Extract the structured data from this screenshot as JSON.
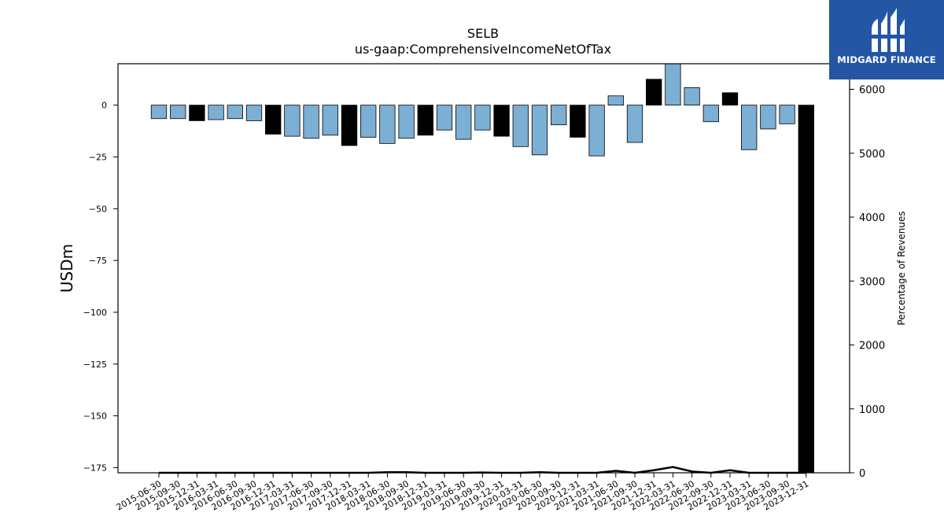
{
  "chart_data": {
    "type": "bar",
    "title": "SELB",
    "subtitle": "us-gaap:ComprehensiveIncomeNetOfTax",
    "ylabel": "USDm",
    "y2label": "Percentage of Revenues",
    "ylim": [
      -177.5,
      20
    ],
    "y2lim": [
      0,
      6400
    ],
    "yticks": [
      0,
      -25,
      -50,
      -75,
      -100,
      -125,
      -150,
      -175
    ],
    "y2ticks": [
      0,
      1000,
      2000,
      3000,
      4000,
      5000,
      6000
    ],
    "grid": false,
    "categories": [
      "2015-06-30",
      "2015-09-30",
      "2015-12-31",
      "2016-03-31",
      "2016-06-30",
      "2016-09-30",
      "2016-12-31",
      "2017-03-31",
      "2017-06-30",
      "2017-09-30",
      "2017-12-31",
      "2018-03-31",
      "2018-06-30",
      "2018-09-30",
      "2018-12-31",
      "2019-03-31",
      "2019-06-30",
      "2019-09-30",
      "2019-12-31",
      "2020-03-31",
      "2020-06-30",
      "2020-09-30",
      "2020-12-31",
      "2021-03-31",
      "2021-06-30",
      "2021-09-30",
      "2021-12-31",
      "2022-03-31",
      "2022-06-30",
      "2022-09-30",
      "2022-12-31",
      "2023-03-31",
      "2023-06-30",
      "2023-09-30",
      "2023-12-31"
    ],
    "series": [
      {
        "type": "bar",
        "values": [
          -6.5,
          -6.5,
          -7.5,
          -7.0,
          -6.5,
          -7.5,
          -14.0,
          -15.0,
          -16.0,
          -14.5,
          -19.5,
          -15.5,
          -18.5,
          -16.0,
          -14.5,
          -12.0,
          -16.5,
          -12.0,
          -15.0,
          -20.0,
          -24.0,
          -9.5,
          -15.5,
          -24.5,
          4.5,
          -18.0,
          12.5,
          22.0,
          8.5,
          -8.0,
          6.0,
          -21.5,
          -11.5,
          -9.0,
          -177.5
        ],
        "highlight": [
          false,
          false,
          true,
          false,
          false,
          false,
          true,
          false,
          false,
          false,
          true,
          false,
          false,
          false,
          true,
          false,
          false,
          false,
          true,
          false,
          false,
          false,
          true,
          false,
          false,
          false,
          true,
          false,
          false,
          false,
          true,
          false,
          false,
          false,
          true
        ],
        "color": "#7bafd4",
        "highlight_color": "#000000"
      },
      {
        "type": "line",
        "axis": "right",
        "values": [
          0,
          0,
          0,
          0,
          0,
          0,
          0,
          0,
          0,
          0,
          0,
          0,
          10,
          10,
          0,
          0,
          0,
          5,
          0,
          0,
          10,
          0,
          0,
          0,
          30,
          0,
          40,
          90,
          20,
          0,
          40,
          0,
          0,
          0,
          0
        ],
        "color": "#000000"
      }
    ]
  },
  "logo": {
    "text": "MIDGARD FINANCE",
    "background": "#2456a6"
  }
}
